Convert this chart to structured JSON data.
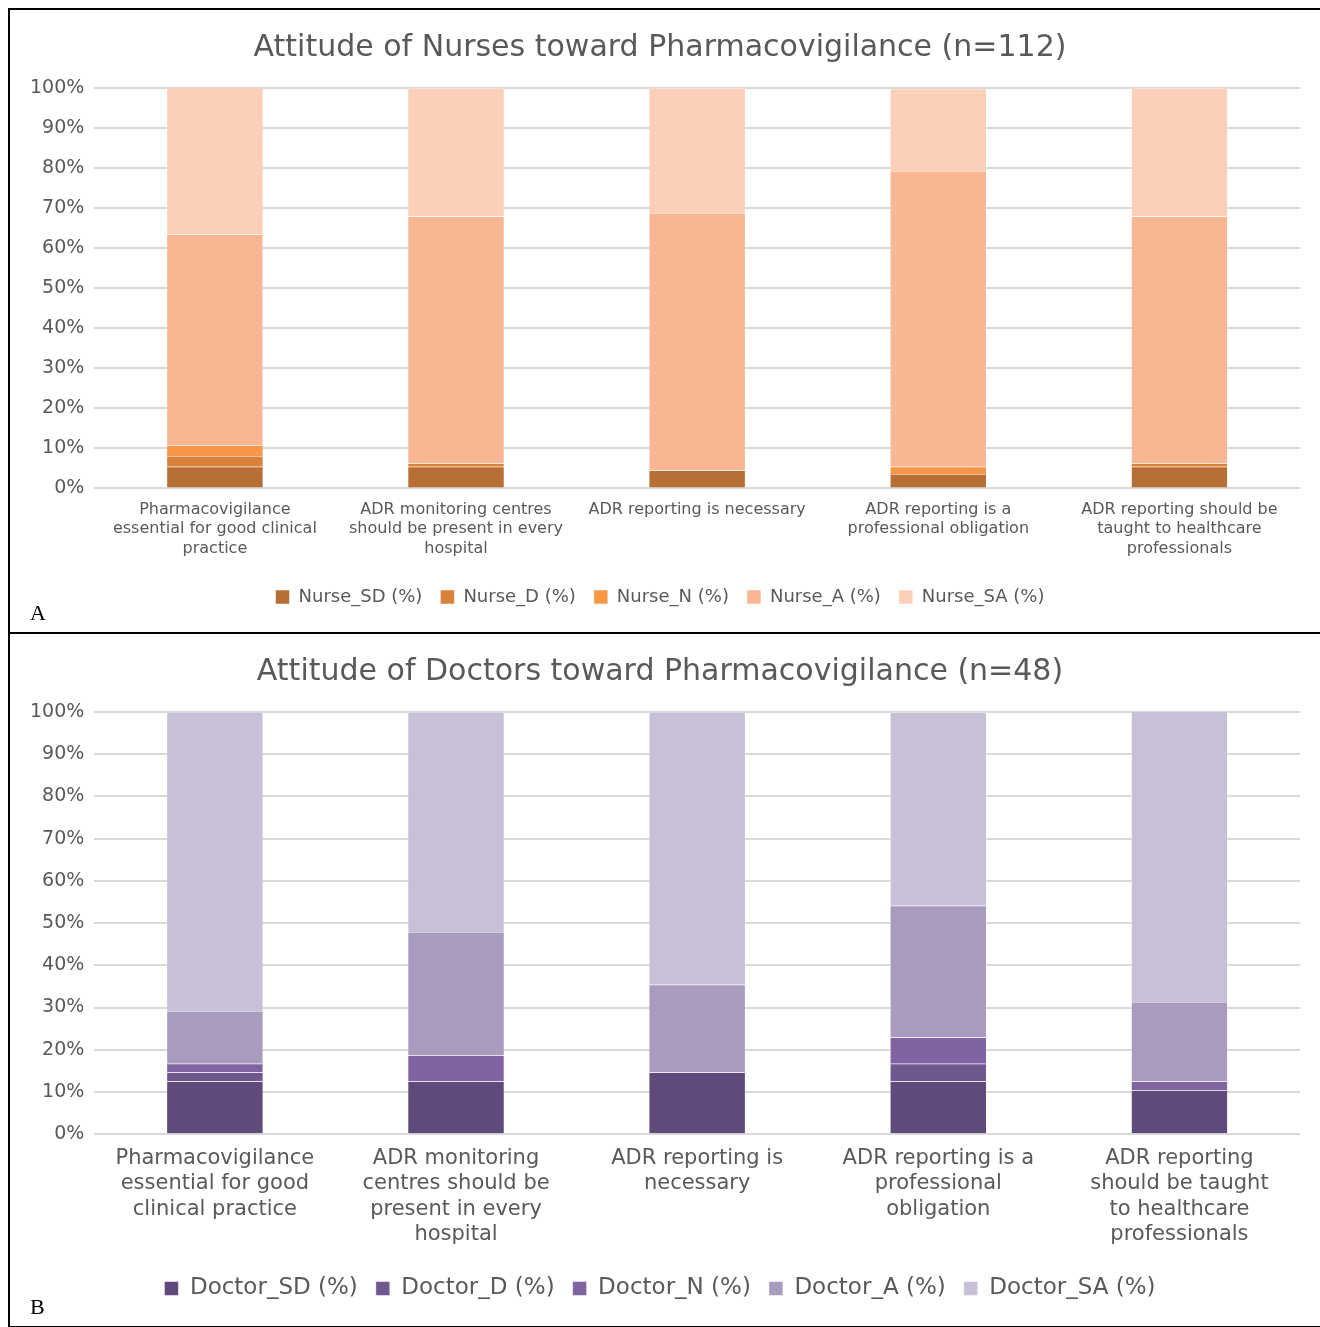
{
  "chart_data": [
    {
      "type": "bar",
      "title": "Attitude of Nurses toward Pharmacovigilance (n=112)",
      "categories": [
        "Pharmacovigilance essential for good clinical practice",
        "ADR monitoring centres should be present in every hospital",
        "ADR reporting is necessary",
        "ADR reporting is a professional obligation",
        "ADR reporting should be taught to healthcare professionals"
      ],
      "stacked": true,
      "ylim": [
        0,
        100
      ],
      "yticks": [
        {
          "value": 0,
          "label": "0%"
        },
        {
          "value": 10,
          "label": "10%"
        },
        {
          "value": 20,
          "label": "20%"
        },
        {
          "value": 30,
          "label": "30%"
        },
        {
          "value": 40,
          "label": "40%"
        },
        {
          "value": 50,
          "label": "50%"
        },
        {
          "value": 60,
          "label": "60%"
        },
        {
          "value": 70,
          "label": "70%"
        },
        {
          "value": 80,
          "label": "80%"
        },
        {
          "value": 90,
          "label": "90%"
        },
        {
          "value": 100,
          "label": "100%"
        }
      ],
      "grid": "y",
      "legend": "bottom",
      "annotations": [
        "A"
      ],
      "series": [
        {
          "name": "Nurse_SD (%)",
          "color": "#b86f36",
          "values": [
            5.4,
            5.4,
            4.5,
            3.6,
            5.4
          ]
        },
        {
          "name": "Nurse_D (%)",
          "color": "#d9823b",
          "values": [
            2.7,
            0.9,
            0,
            0,
            0.9
          ]
        },
        {
          "name": "Nurse_N (%)",
          "color": "#f79646",
          "values": [
            2.7,
            0,
            0,
            1.8,
            0
          ]
        },
        {
          "name": "Nurse_A (%)",
          "color": "#f9b692",
          "values": [
            52.7,
            61.6,
            64.3,
            73.9,
            61.6
          ]
        },
        {
          "name": "Nurse_SA (%)",
          "color": "#fcd0b8",
          "values": [
            36.6,
            32.1,
            31.2,
            20.5,
            32.1
          ]
        }
      ]
    },
    {
      "type": "bar",
      "title": "Attitude of Doctors toward Pharmacovigilance (n=48)",
      "categories": [
        "Pharmacovigilance essential for good clinical practice",
        "ADR monitoring centres should be present in every hospital",
        "ADR reporting is necessary",
        "ADR reporting is a professional obligation",
        "ADR reporting should be taught to healthcare professionals"
      ],
      "stacked": true,
      "ylim": [
        0,
        100
      ],
      "yticks": [
        {
          "value": 0,
          "label": "0%"
        },
        {
          "value": 10,
          "label": "10%"
        },
        {
          "value": 20,
          "label": "20%"
        },
        {
          "value": 30,
          "label": "30%"
        },
        {
          "value": 40,
          "label": "40%"
        },
        {
          "value": 50,
          "label": "50%"
        },
        {
          "value": 60,
          "label": "60%"
        },
        {
          "value": 70,
          "label": "70%"
        },
        {
          "value": 80,
          "label": "80%"
        },
        {
          "value": 90,
          "label": "90%"
        },
        {
          "value": 100,
          "label": "100%"
        }
      ],
      "grid": "y",
      "legend": "bottom",
      "annotations": [
        "B"
      ],
      "series": [
        {
          "name": "Doctor_SD (%)",
          "color": "#604a7b",
          "values": [
            12.5,
            12.5,
            14.6,
            12.5,
            10.4
          ]
        },
        {
          "name": "Doctor_D (%)",
          "color": "#6f5890",
          "values": [
            2.1,
            0,
            0,
            4.2,
            0
          ]
        },
        {
          "name": "Doctor_N (%)",
          "color": "#8064a2",
          "values": [
            2.1,
            6.2,
            0,
            6.2,
            2.1
          ]
        },
        {
          "name": "Doctor_A (%)",
          "color": "#a99bbd",
          "values": [
            12.5,
            29.2,
            20.8,
            31.2,
            18.8
          ]
        },
        {
          "name": "Doctor_SA (%)",
          "color": "#c8c0d6",
          "values": [
            70.8,
            52.1,
            64.6,
            45.8,
            68.8
          ]
        }
      ]
    }
  ]
}
